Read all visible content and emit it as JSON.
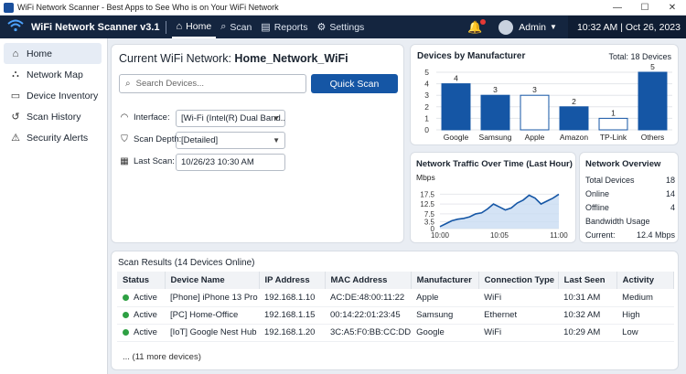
{
  "window": {
    "title": "WiFi Network Scanner - Best Apps to See Who is on Your WiFi Network",
    "min": "—",
    "max": "☐",
    "close": "✕"
  },
  "nav": {
    "brand": "WiFi Network Scanner v3.1",
    "tabs": [
      {
        "label": "Home",
        "icon": "home-icon"
      },
      {
        "label": "Scan",
        "icon": "search-icon"
      },
      {
        "label": "Reports",
        "icon": "report-icon"
      },
      {
        "label": "Settings",
        "icon": "gear-icon"
      }
    ],
    "user": "Admin",
    "datetime": "10:32 AM | Oct 26, 2023"
  },
  "sidebar": {
    "items": [
      {
        "label": "Home",
        "icon": "home-icon"
      },
      {
        "label": "Network Map",
        "icon": "network-icon"
      },
      {
        "label": "Device Inventory",
        "icon": "inventory-icon"
      },
      {
        "label": "Scan History",
        "icon": "history-icon"
      },
      {
        "label": "Security Alerts",
        "icon": "alert-icon"
      }
    ]
  },
  "scan": {
    "heading_prefix": "Current WiFi Network:",
    "network": "Home_Network_WiFi",
    "search_placeholder": "Search Devices...",
    "quick_scan": "Quick Scan",
    "interface_label": "Interface:",
    "interface_value": "[Wi-Fi (Intel(R) Dual Band...",
    "depth_label": "Scan Depth:",
    "depth_value": "[Detailed]",
    "last_label": "Last Scan:",
    "last_value": "10/26/23 10:30 AM"
  },
  "manufacturers": {
    "title": "Devices by Manufacturer",
    "total": "Total: 18 Devices"
  },
  "traffic": {
    "title": "Network Traffic Over Time (Last Hour)"
  },
  "overview": {
    "title": "Network Overview",
    "rows": [
      {
        "label": "Total Devices",
        "value": "18"
      },
      {
        "label": "Online",
        "value": "14"
      },
      {
        "label": "Offline",
        "value": "4"
      },
      {
        "label": "Bandwidth Usage",
        "value": ""
      },
      {
        "label": "Current:",
        "value": "12.4 Mbps"
      }
    ]
  },
  "results": {
    "title": "Scan Results (14 Devices Online)",
    "columns": [
      "Status",
      "Device Name",
      "IP Address",
      "MAC Address",
      "Manufacturer",
      "Connection Type",
      "Last Seen",
      "Activity"
    ],
    "rows": [
      {
        "status": "Active",
        "name": "[Phone] iPhone 13 Pro",
        "ip": "192.168.1.10",
        "mac": "AC:DE:48:00:11:22",
        "mfr": "Apple",
        "conn": "WiFi",
        "seen": "10:31 AM",
        "activity": "Medium"
      },
      {
        "status": "Active",
        "name": "[PC] Home-Office",
        "ip": "192.168.1.15",
        "mac": "00:14:22:01:23:45",
        "mfr": "Samsung",
        "conn": "Ethernet",
        "seen": "10:32 AM",
        "activity": "High"
      },
      {
        "status": "Active",
        "name": "[IoT] Google Nest Hub",
        "ip": "192.168.1.20",
        "mac": "3C:A5:F0:BB:CC:DD",
        "mfr": "Google",
        "conn": "WiFi",
        "seen": "10:29 AM",
        "activity": "Low"
      }
    ],
    "more": "... (11 more devices)"
  },
  "colors": {
    "accent": "#1556a5",
    "nav": "#14253f",
    "active": "#2ea043"
  },
  "chart_data": [
    {
      "type": "bar",
      "title": "Devices by Manufacturer",
      "categories": [
        "Google",
        "Samsung",
        "Apple",
        "Amazon",
        "TP-Link",
        "Others"
      ],
      "values": [
        4,
        3,
        3,
        2,
        1,
        5
      ],
      "ylim": [
        0,
        5
      ],
      "yticks": [
        "0",
        "1",
        "2",
        "3",
        "4",
        "5"
      ],
      "colors": [
        "#1556a5",
        "#1556a5",
        "#ffffff",
        "#1556a5",
        "#ffffff",
        "#1556a5"
      ],
      "grid": true
    },
    {
      "type": "area",
      "title": "Network Traffic Over Time (Last Hour)",
      "ylabel": "Mbps",
      "xticks": [
        "10:00",
        "10:05",
        "11:00"
      ],
      "yticks": [
        "0",
        "3.5",
        "7.5",
        "12.5",
        "17.5"
      ],
      "ylim": [
        0,
        20
      ],
      "x": [
        0,
        1,
        2,
        3,
        4,
        5,
        6,
        7,
        8,
        9,
        10,
        11,
        12,
        13,
        14,
        15,
        16,
        17,
        18,
        19,
        20
      ],
      "values": [
        1,
        2.5,
        4,
        4.8,
        5.2,
        6,
        7.5,
        8,
        10,
        12.5,
        11,
        9.5,
        10.5,
        13,
        14.5,
        17,
        15.5,
        12.5,
        14,
        15.5,
        17.5
      ],
      "grid": true
    }
  ]
}
